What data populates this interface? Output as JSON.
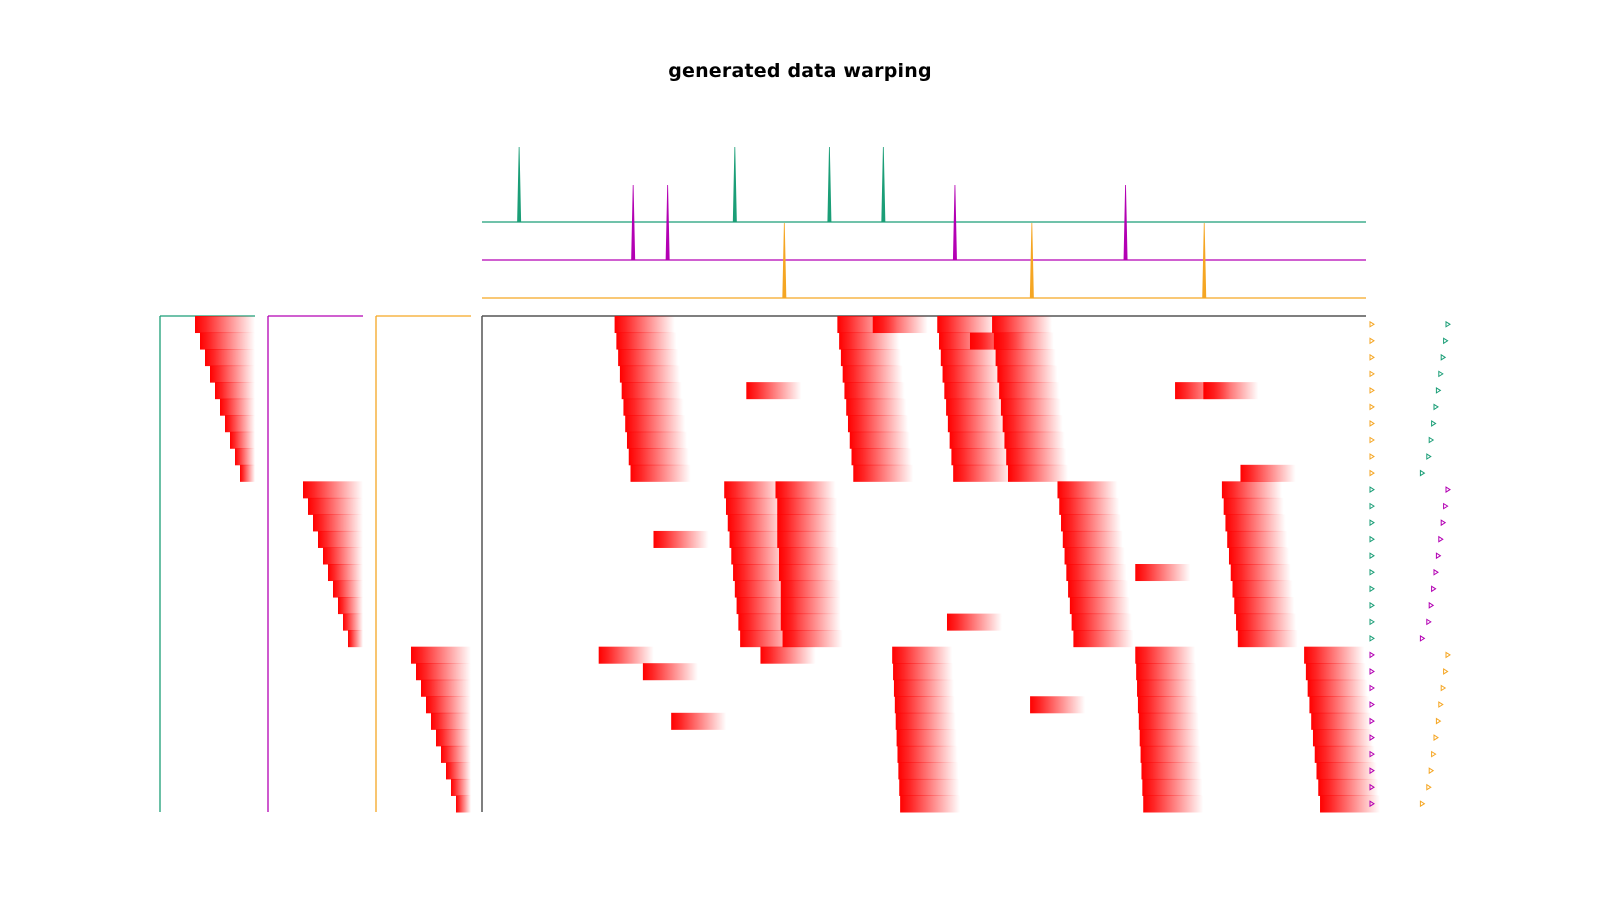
{
  "figure": {
    "title": "generated data warping"
  },
  "colors": {
    "group_a": "#1b9e77",
    "group_b": "#b300b3",
    "group_c": "#f5a623",
    "frame": "#555555",
    "heat": "#ff0000"
  },
  "chart_data": {
    "type": "heatmap",
    "title": "generated data warping",
    "xlabel": "",
    "ylabel": "",
    "grid": false,
    "time_range": [
      0,
      1000
    ],
    "templates": [
      {
        "color_key": "group_a",
        "events": [
          42,
          286,
          393,
          454
        ]
      },
      {
        "color_key": "group_b",
        "events": [
          171,
          210,
          535,
          728
        ]
      },
      {
        "color_key": "group_c",
        "events": [
          342,
          622,
          817
        ]
      }
    ],
    "trials": [
      {
        "group": 0,
        "onset": 0,
        "events": [
          150,
          402,
          515,
          577
        ],
        "extra": [
          442
        ]
      },
      {
        "group": 0,
        "onset": 1,
        "events": [
          152,
          404,
          517,
          579
        ],
        "extra": [
          552
        ]
      },
      {
        "group": 0,
        "onset": 2,
        "events": [
          154,
          406,
          519,
          581
        ],
        "extra": []
      },
      {
        "group": 0,
        "onset": 3,
        "events": [
          156,
          408,
          521,
          583
        ],
        "extra": []
      },
      {
        "group": 0,
        "onset": 4,
        "events": [
          158,
          410,
          523,
          585
        ],
        "extra": [
          299,
          784,
          816
        ]
      },
      {
        "group": 0,
        "onset": 5,
        "events": [
          160,
          412,
          525,
          587
        ],
        "extra": []
      },
      {
        "group": 0,
        "onset": 6,
        "events": [
          162,
          414,
          527,
          589
        ],
        "extra": []
      },
      {
        "group": 0,
        "onset": 7,
        "events": [
          164,
          416,
          529,
          591
        ],
        "extra": []
      },
      {
        "group": 0,
        "onset": 8,
        "events": [
          166,
          418,
          531,
          593
        ],
        "extra": []
      },
      {
        "group": 0,
        "onset": 9,
        "events": [
          168,
          420,
          533,
          595
        ],
        "extra": [
          858
        ]
      },
      {
        "group": 1,
        "onset": 0,
        "events": [
          274,
          332,
          651,
          837
        ],
        "extra": []
      },
      {
        "group": 1,
        "onset": 1,
        "events": [
          276,
          334,
          653,
          839
        ],
        "extra": []
      },
      {
        "group": 1,
        "onset": 2,
        "events": [
          278,
          334,
          655,
          841
        ],
        "extra": []
      },
      {
        "group": 1,
        "onset": 3,
        "events": [
          280,
          334,
          657,
          843
        ],
        "extra": [
          194
        ]
      },
      {
        "group": 1,
        "onset": 4,
        "events": [
          282,
          336,
          659,
          845
        ],
        "extra": []
      },
      {
        "group": 1,
        "onset": 5,
        "events": [
          284,
          336,
          661,
          847
        ],
        "extra": [
          739
        ]
      },
      {
        "group": 1,
        "onset": 6,
        "events": [
          286,
          338,
          663,
          849
        ],
        "extra": []
      },
      {
        "group": 1,
        "onset": 7,
        "events": [
          288,
          338,
          665,
          851
        ],
        "extra": []
      },
      {
        "group": 1,
        "onset": 8,
        "events": [
          290,
          338,
          667,
          853
        ],
        "extra": [
          526
        ]
      },
      {
        "group": 1,
        "onset": 9,
        "events": [
          292,
          340,
          669,
          855
        ],
        "extra": []
      },
      {
        "group": 2,
        "onset": 0,
        "events": [
          464,
          739,
          930
        ],
        "extra": [
          132,
          315
        ]
      },
      {
        "group": 2,
        "onset": 1,
        "events": [
          465,
          740,
          932
        ],
        "extra": [
          182
        ]
      },
      {
        "group": 2,
        "onset": 2,
        "events": [
          466,
          741,
          934
        ],
        "extra": []
      },
      {
        "group": 2,
        "onset": 3,
        "events": [
          467,
          742,
          936
        ],
        "extra": [
          620
        ]
      },
      {
        "group": 2,
        "onset": 4,
        "events": [
          468,
          743,
          938
        ],
        "extra": [
          214
        ]
      },
      {
        "group": 2,
        "onset": 5,
        "events": [
          469,
          744,
          940
        ],
        "extra": []
      },
      {
        "group": 2,
        "onset": 6,
        "events": [
          470,
          745,
          942
        ],
        "extra": []
      },
      {
        "group": 2,
        "onset": 7,
        "events": [
          471,
          746,
          944
        ],
        "extra": []
      },
      {
        "group": 2,
        "onset": 8,
        "events": [
          472,
          747,
          946
        ],
        "extra": []
      },
      {
        "group": 2,
        "onset": 9,
        "events": [
          473,
          748,
          948
        ],
        "extra": []
      }
    ]
  }
}
